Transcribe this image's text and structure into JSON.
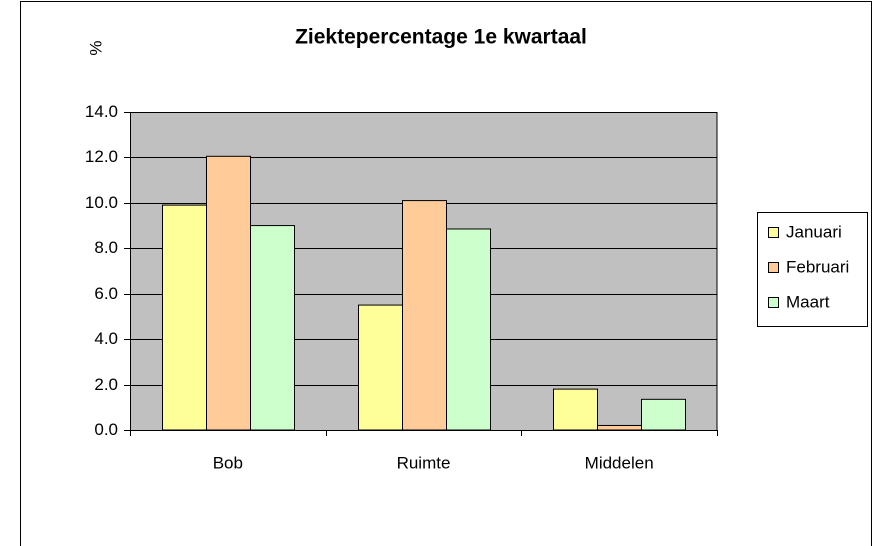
{
  "chart_data": {
    "type": "bar",
    "title": "Ziektepercentage 1e kwartaal",
    "y_label": "%",
    "categories": [
      "Bob",
      "Ruimte",
      "Middelen"
    ],
    "series": [
      {
        "name": "Januari",
        "color": "#ffff99",
        "values": [
          9.9,
          5.5,
          1.8
        ]
      },
      {
        "name": "Februari",
        "color": "#ffcc99",
        "values": [
          12.05,
          10.1,
          0.2
        ]
      },
      {
        "name": "Maart",
        "color": "#ccffcc",
        "values": [
          9.0,
          8.85,
          1.35
        ]
      }
    ],
    "ylim": [
      0,
      14
    ],
    "yticks": [
      {
        "value": 0,
        "label": "0.0"
      },
      {
        "value": 2,
        "label": "2.0"
      },
      {
        "value": 4,
        "label": "4.0"
      },
      {
        "value": 6,
        "label": "6.0"
      },
      {
        "value": 8,
        "label": "8.0"
      },
      {
        "value": 10,
        "label": "10.0"
      },
      {
        "value": 12,
        "label": "12.0"
      },
      {
        "value": 14,
        "label": "14.0"
      }
    ],
    "grid": true,
    "legend": "right",
    "plot_background": "#c0c0c0"
  }
}
